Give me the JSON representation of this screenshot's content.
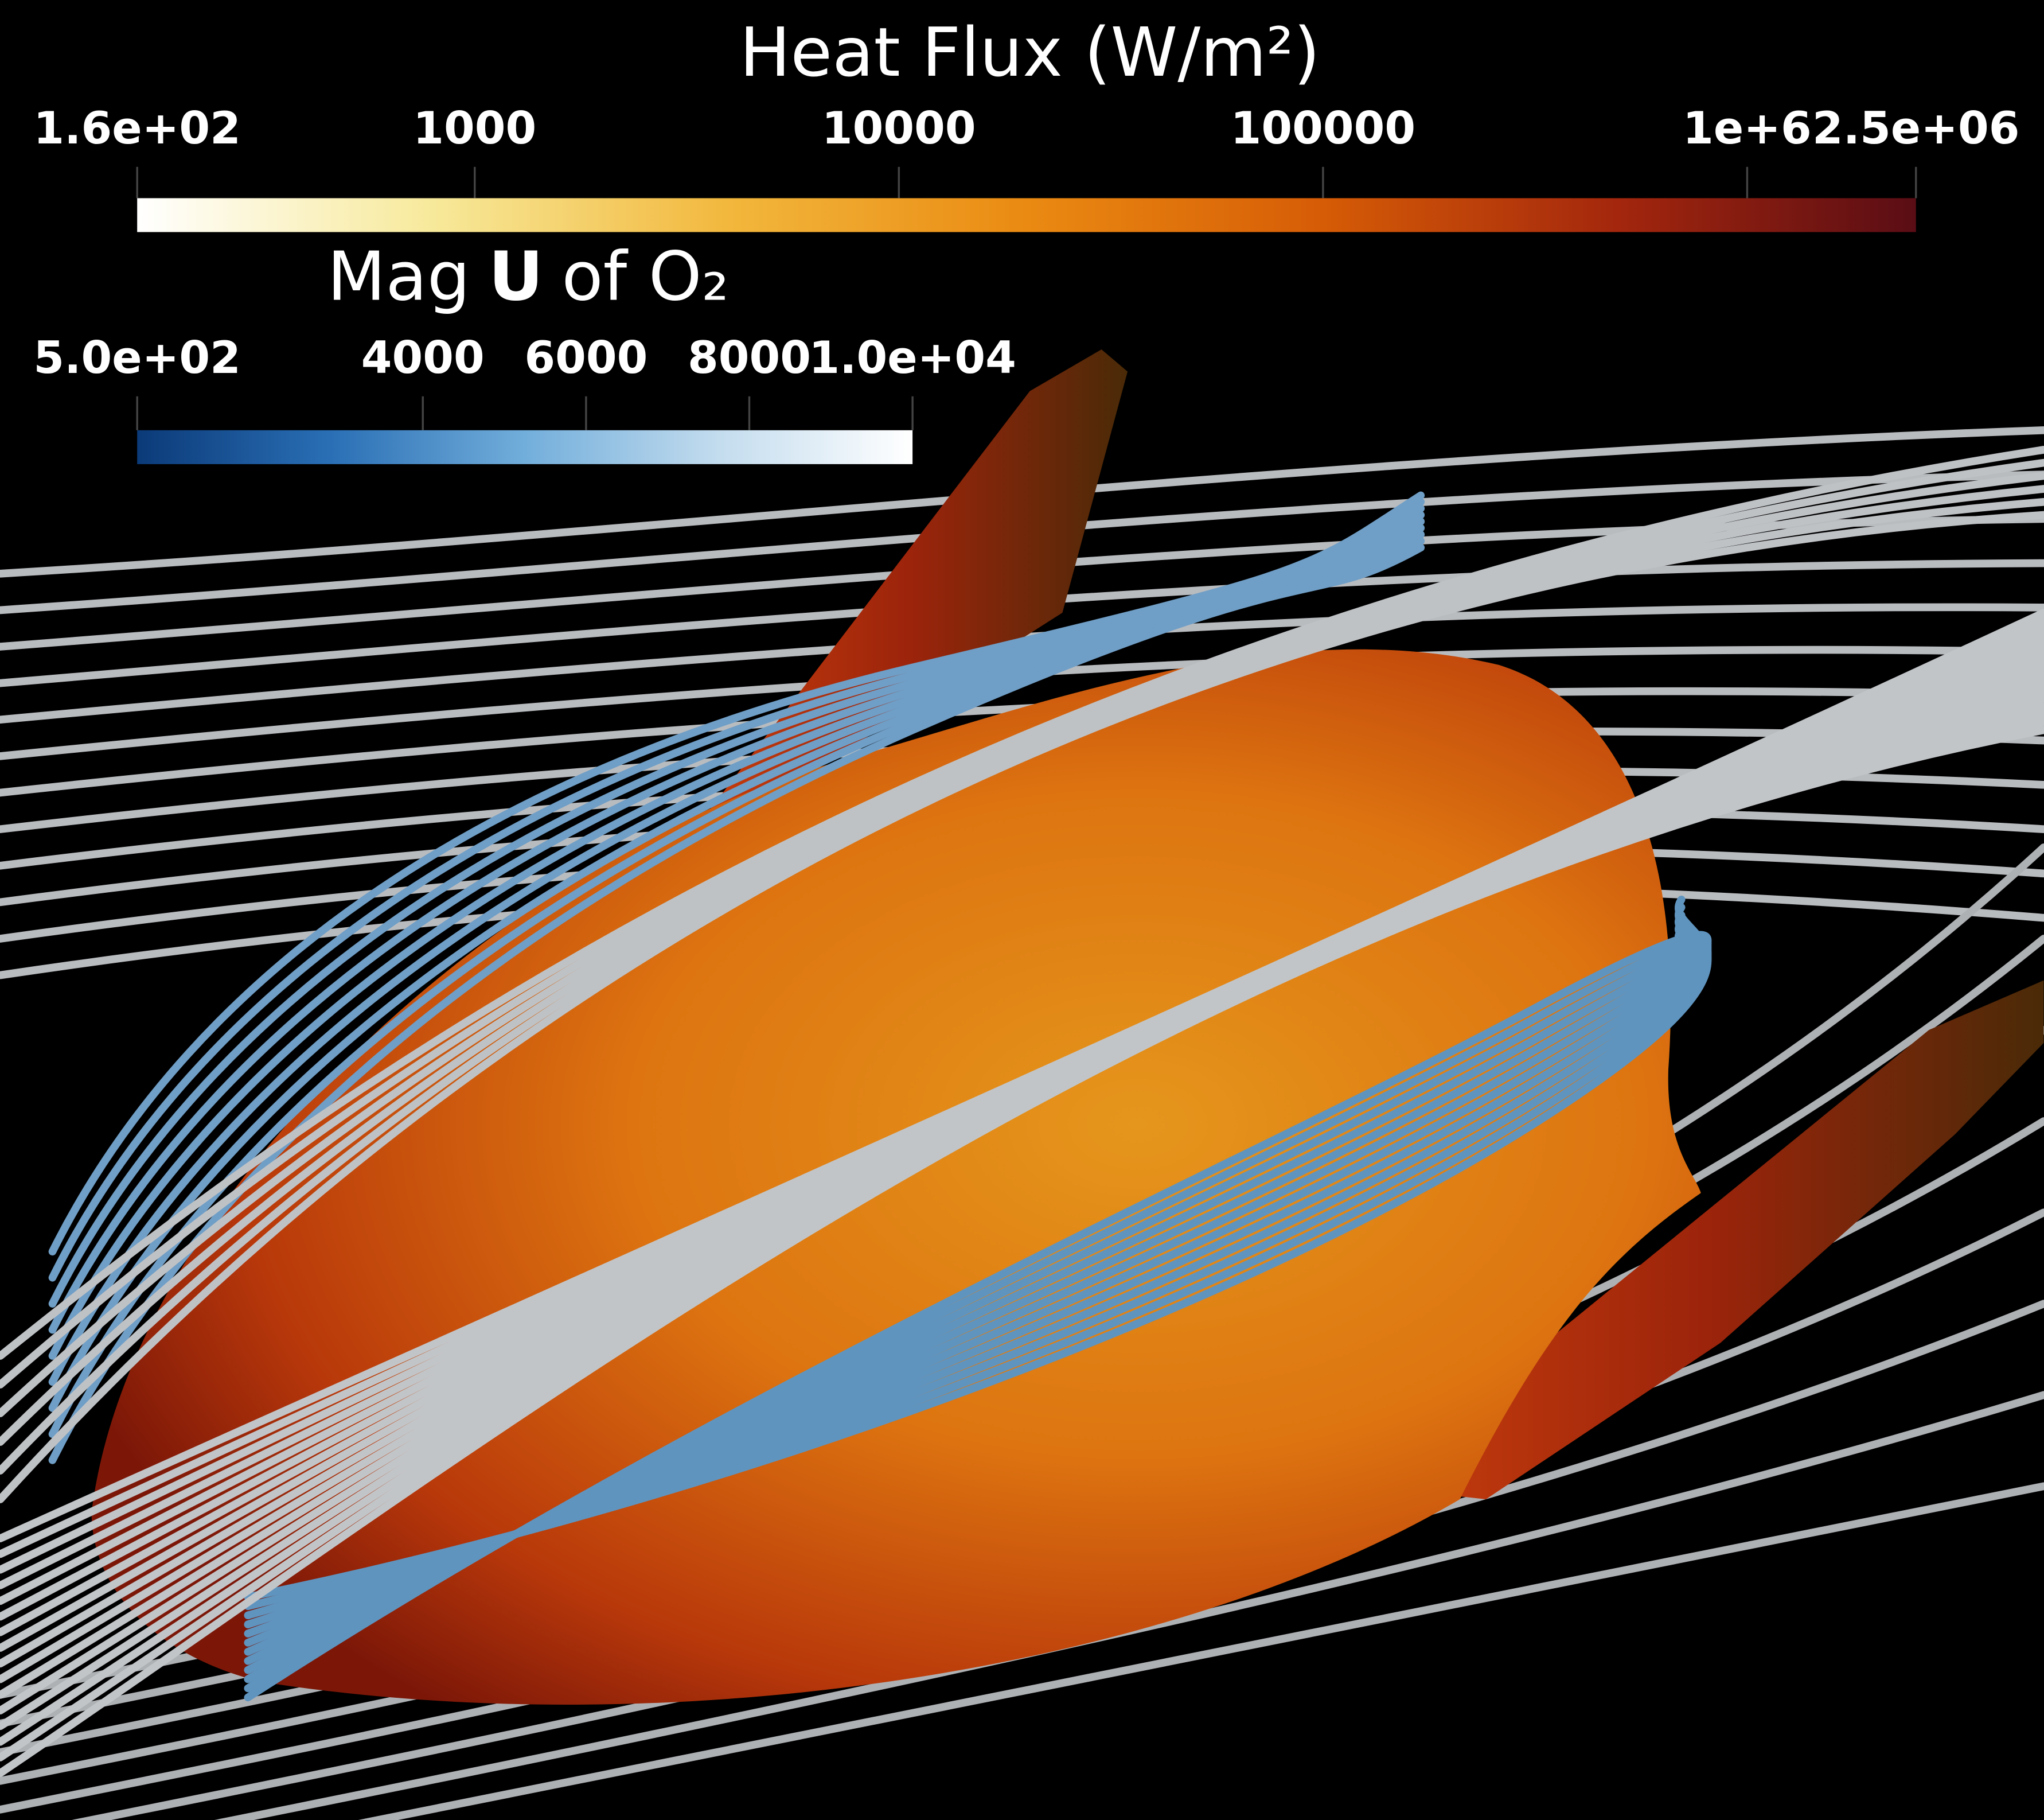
{
  "colorbars": [
    {
      "title": "Heat Flux (W/m²)",
      "log_scale": true,
      "range": [
        160,
        2500000
      ],
      "ticks": [
        {
          "value": 160,
          "label": "1.6e+02"
        },
        1000,
        10000,
        100000,
        {
          "value": 1000000,
          "label": "1e+6"
        },
        {
          "value": 2500000,
          "label": "2.5e+06"
        }
      ],
      "colors": [
        "#ffffff",
        "#f7e99a",
        "#f2b73c",
        "#ea8a12",
        "#d65c06",
        "#a3260d",
        "#5a0d15"
      ]
    },
    {
      "title_parts": [
        "Mag",
        "U",
        "of O₂"
      ],
      "log_scale": false,
      "range": [
        500,
        10000
      ],
      "ticks": [
        {
          "value": 500,
          "label": "5.0e+02"
        },
        4000,
        6000,
        8000,
        {
          "value": 10000,
          "label": "1.0e+04"
        }
      ],
      "colors": [
        "#0b3a78",
        "#2a6fb5",
        "#72aedb",
        "#c3dcee",
        "#ffffff"
      ]
    }
  ]
}
